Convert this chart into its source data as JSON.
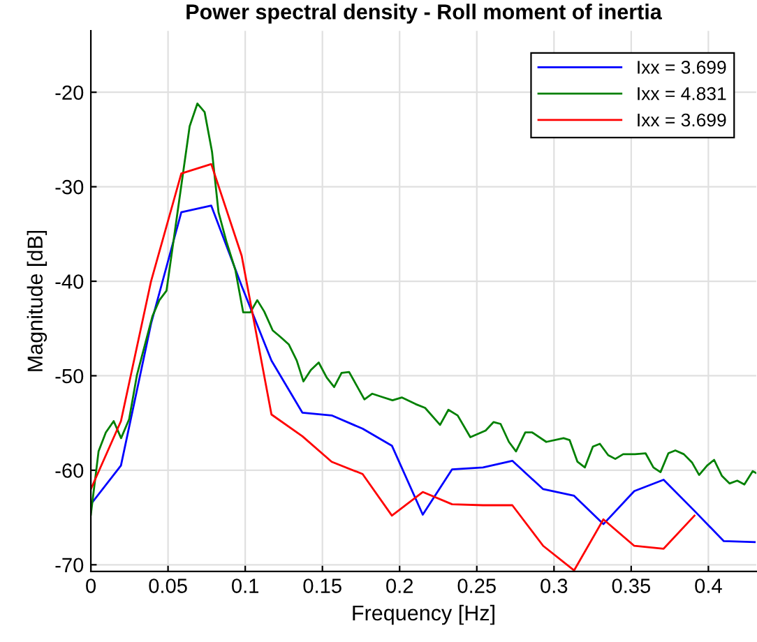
{
  "chart_data": {
    "type": "line",
    "title": "Power spectral density - Roll moment of inertia",
    "xlabel": "Frequency [Hz]",
    "ylabel": "Magnitude [dB]",
    "xlim": [
      0,
      0.431
    ],
    "ylim": [
      -70.7,
      -13.5
    ],
    "xticks": [
      0,
      0.05,
      0.1,
      0.15,
      0.2,
      0.25,
      0.3,
      0.35,
      0.4
    ],
    "yticks": [
      -70,
      -60,
      -50,
      -40,
      -30,
      -20
    ],
    "grid": true,
    "legend": "top right",
    "line_style": "solid",
    "marker": "none",
    "series": [
      {
        "name": "Ixx = 3.699",
        "color": "#0000ff",
        "x": [
          0,
          0.0195,
          0.039,
          0.0586,
          0.078,
          0.0977,
          0.117,
          0.137,
          0.156,
          0.176,
          0.195,
          0.215,
          0.234,
          0.254,
          0.273,
          0.293,
          0.313,
          0.332,
          0.352,
          0.371,
          0.391,
          0.41,
          0.43
        ],
        "values": [
          -63.6,
          -59.5,
          -44.5,
          -32.7,
          -32.0,
          -40.5,
          -48.4,
          -53.9,
          -54.2,
          -55.6,
          -57.4,
          -64.7,
          -59.9,
          -59.7,
          -59.0,
          -62.0,
          -62.7,
          -65.7,
          -62.2,
          -61.0,
          -64.3,
          -67.5,
          -67.6
        ]
      },
      {
        "name": "Ixx = 4.831",
        "color": "#008000",
        "x": [
          0,
          0.005,
          0.0097,
          0.0148,
          0.0196,
          0.0248,
          0.0299,
          0.0399,
          0.0444,
          0.049,
          0.064,
          0.069,
          0.0737,
          0.0785,
          0.0827,
          0.088,
          0.0936,
          0.0987,
          0.1033,
          0.1078,
          0.1123,
          0.1178,
          0.1229,
          0.1283,
          0.1334,
          0.1377,
          0.1425,
          0.1476,
          0.1528,
          0.1576,
          0.1624,
          0.1673,
          0.1724,
          0.1772,
          0.1823,
          0.1878,
          0.1954,
          0.2014,
          0.2104,
          0.2165,
          0.2262,
          0.2316,
          0.2376,
          0.2458,
          0.2557,
          0.2609,
          0.2654,
          0.2708,
          0.2754,
          0.2814,
          0.2859,
          0.295,
          0.3062,
          0.3101,
          0.3152,
          0.32,
          0.3252,
          0.3297,
          0.3351,
          0.3397,
          0.3448,
          0.3524,
          0.3593,
          0.3644,
          0.369,
          0.3741,
          0.3786,
          0.3841,
          0.3895,
          0.394,
          0.3992,
          0.4037,
          0.4088,
          0.4137,
          0.4187,
          0.4233,
          0.4287,
          0.431
        ],
        "values": [
          -64.7,
          -58.0,
          -56.0,
          -54.8,
          -56.6,
          -54.6,
          -49.9,
          -43.7,
          -42.0,
          -41.0,
          -23.6,
          -21.2,
          -22.1,
          -26.3,
          -32.7,
          -35.9,
          -38.8,
          -43.3,
          -43.3,
          -42.0,
          -43.2,
          -45.2,
          -45.9,
          -46.7,
          -48.4,
          -50.6,
          -49.4,
          -48.6,
          -50.2,
          -51.2,
          -49.7,
          -49.6,
          -51.1,
          -52.5,
          -51.9,
          -52.2,
          -52.6,
          -52.3,
          -53.0,
          -53.4,
          -55.2,
          -53.6,
          -54.2,
          -56.5,
          -55.8,
          -54.9,
          -55.1,
          -57.0,
          -58.0,
          -56.0,
          -56.0,
          -57.0,
          -56.6,
          -56.8,
          -59.1,
          -59.7,
          -57.5,
          -57.2,
          -58.4,
          -58.8,
          -58.3,
          -58.3,
          -58.2,
          -59.7,
          -60.2,
          -58.2,
          -57.9,
          -58.3,
          -59.2,
          -60.5,
          -59.5,
          -58.9,
          -60.6,
          -61.4,
          -61.1,
          -61.5,
          -60.1,
          -60.3
        ]
      },
      {
        "name": "Ixx = 3.699",
        "color": "#ff0000",
        "x": [
          0,
          0.0195,
          0.039,
          0.0586,
          0.078,
          0.0977,
          0.117,
          0.137,
          0.156,
          0.176,
          0.195,
          0.215,
          0.234,
          0.254,
          0.273,
          0.293,
          0.313,
          0.332,
          0.352,
          0.371,
          0.391
        ],
        "values": [
          -62.0,
          -54.8,
          -40.0,
          -28.6,
          -27.6,
          -37.3,
          -54.1,
          -56.4,
          -59.1,
          -60.4,
          -64.8,
          -62.3,
          -63.6,
          -63.7,
          -63.7,
          -68.0,
          -70.6,
          -65.2,
          -68.0,
          -68.3,
          -64.8
        ]
      }
    ]
  }
}
